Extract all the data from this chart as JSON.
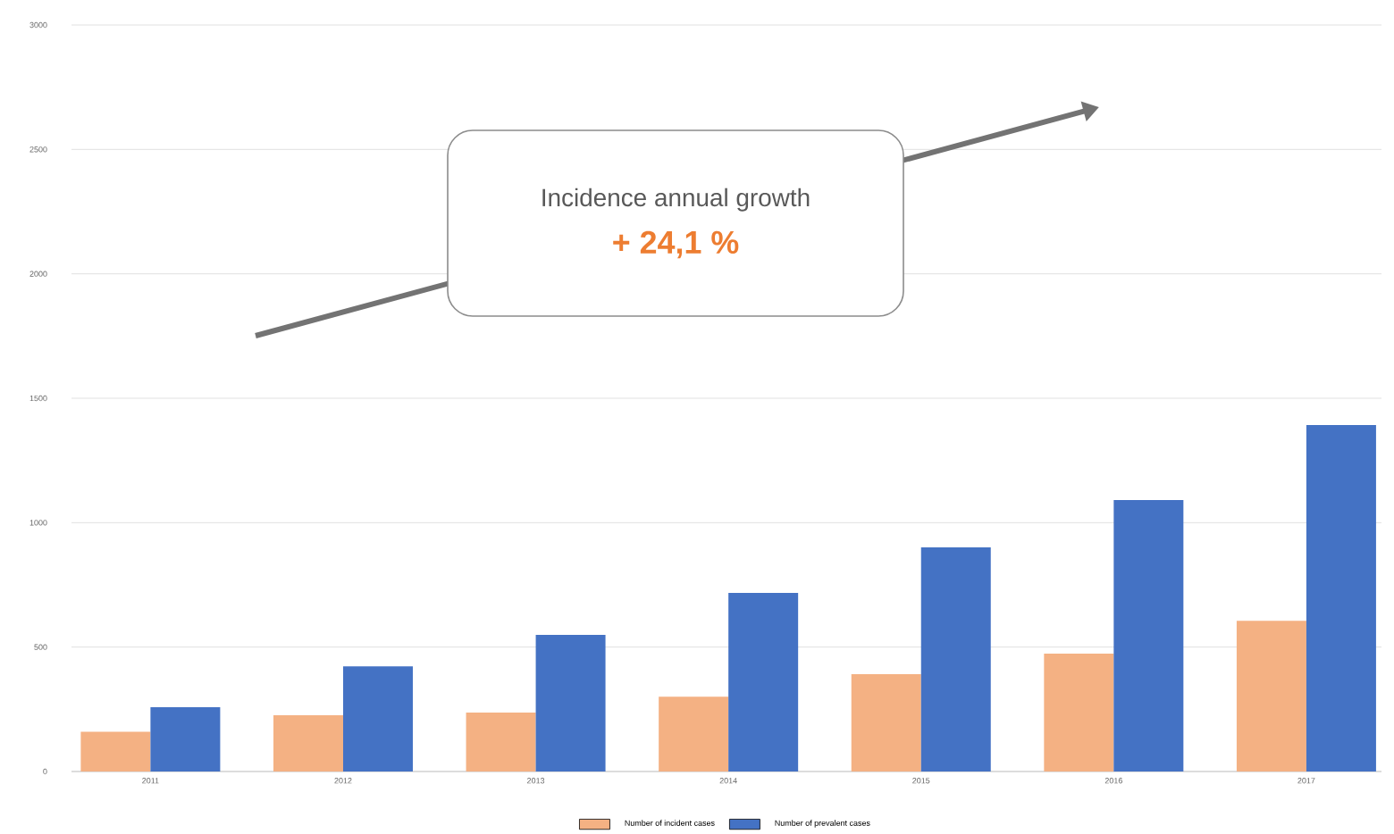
{
  "chart_data": {
    "type": "bar",
    "categories": [
      "2011",
      "2012",
      "2013",
      "2014",
      "2015",
      "2016",
      "2017"
    ],
    "series": [
      {
        "name": "Number of incident cases",
        "color": "#f4b183",
        "values": [
          160,
          226,
          237,
          301,
          391,
          474,
          606
        ]
      },
      {
        "name": "Number of prevalent cases",
        "color": "#4472c4",
        "values": [
          258,
          423,
          549,
          718,
          901,
          1091,
          1392
        ]
      }
    ],
    "ylim": [
      0,
      3000
    ],
    "yticks": [
      0,
      500,
      1000,
      1500,
      2000,
      2500,
      3000
    ],
    "grid": "y",
    "legend": "bottom",
    "annotations": [
      "Incidence annual growth",
      "+ 24,1 %"
    ]
  }
}
